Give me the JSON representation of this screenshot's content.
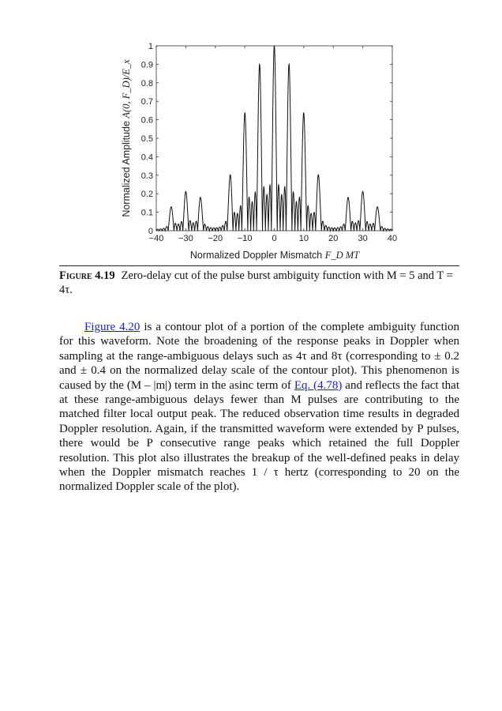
{
  "chart_data": {
    "type": "line",
    "xlabel": "Normalized Doppler Mismatch F_D MT",
    "xlabel_parts": {
      "text": "Normalized Doppler Mismatch ",
      "math": "F_D MT"
    },
    "ylabel_parts": {
      "text": "Normalized Amplitude ",
      "math": "A(0, F_D)/E_x"
    },
    "xlim": [
      -40,
      40
    ],
    "ylim": [
      0,
      1
    ],
    "xticks": [
      "−40",
      "−30",
      "−20",
      "−10",
      "0",
      "10",
      "20",
      "30",
      "40"
    ],
    "yticks": [
      "0",
      "0.1",
      "0.2",
      "0.3",
      "0.4",
      "0.5",
      "0.6",
      "0.7",
      "0.8",
      "0.9",
      "1"
    ],
    "grid": false,
    "parameters": {
      "M": 5,
      "T_over_tau": 4
    },
    "peaks": {
      "x": [
        -35,
        -30,
        -25,
        -15,
        -10,
        -5,
        0,
        5,
        10,
        15,
        25,
        30,
        35
      ],
      "y": [
        0.13,
        0.22,
        0.18,
        0.3,
        0.64,
        0.9,
        1.0,
        0.9,
        0.64,
        0.3,
        0.18,
        0.22,
        0.13
      ]
    },
    "line_color": "#111111"
  },
  "caption": {
    "figure_label": "Figure 4.19",
    "text": "Zero-delay cut of the pulse burst ambiguity function with M = 5 and T = 4τ."
  },
  "paragraph": {
    "link_figure": "Figure 4.20",
    "part1": " is a contour plot of a portion of the complete ambiguity function for this waveform. Note the broadening of the response peaks in Doppler when sampling at the range-ambiguous delays such as 4τ and 8τ (corresponding to ± 0.2 and ± 0.4 on the normalized delay scale of the contour plot). This phenomenon is caused by the (M – |m|) term in the asinc term of ",
    "link_eq": "Eq. (4.78)",
    "part2": " and reflects the fact that at these range-ambiguous delays fewer than M pulses are contributing to the matched filter local output peak. The reduced observation time results in degraded Doppler resolution. Again, if the transmitted waveform were extended by P pulses, there would be P consecutive range peaks which retained the full Doppler resolution. This plot also illustrates the breakup of the well-defined peaks in delay when the Doppler mismatch reaches 1 / τ hertz (corresponding to 20 on the normalized Doppler scale of the plot)."
  }
}
